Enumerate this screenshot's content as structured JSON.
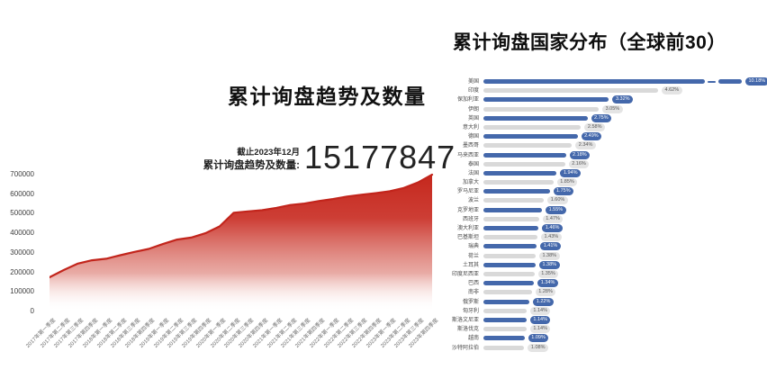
{
  "left_chart": {
    "title": "累计询盘趋势及数量",
    "asof_label": "截止2023年12月",
    "total_label": "累计询盘趋势及数量:",
    "total_value": "15177847"
  },
  "right_chart": {
    "title": "累计询盘国家分布（全球前30）"
  },
  "colors": {
    "area_fill_top": "#c5281d",
    "area_line": "#c2251c",
    "bar_blue": "#4468ab",
    "bar_gray": "#d9d9d9",
    "pill_gray_bg": "#e4e4e4",
    "pill_gray_text": "#555555",
    "pill_blue_text": "#ffffff",
    "text_dark": "#111111",
    "tick_text": "#3c3c3c"
  },
  "chart_data": [
    {
      "type": "area",
      "title": "累计询盘趋势及数量",
      "annotation": {
        "asof": "截止2023年12月",
        "label": "累计询盘趋势及数量:",
        "value": "15177847"
      },
      "x": [
        "2017年第一季度",
        "2017年第二季度",
        "2017年第三季度",
        "2017年第四季度",
        "2018年第一季度",
        "2018年第二季度",
        "2018年第三季度",
        "2018年第四季度",
        "2019年第一季度",
        "2019年第二季度",
        "2019年第三季度",
        "2019年第四季度",
        "2020年第一季度",
        "2020年第二季度",
        "2020年第三季度",
        "2020年第四季度",
        "2021年第一季度",
        "2021年第二季度",
        "2021年第三季度",
        "2021年第四季度",
        "2022年第一季度",
        "2022年第二季度",
        "2022年第三季度",
        "2022年第四季度",
        "2023年第一季度",
        "2023年第二季度",
        "2023年第三季度",
        "2023年第四季度"
      ],
      "values": [
        175000,
        212000,
        245000,
        262000,
        270000,
        288000,
        305000,
        320000,
        345000,
        368000,
        378000,
        400000,
        435000,
        505000,
        512000,
        518000,
        530000,
        545000,
        552000,
        565000,
        575000,
        588000,
        597000,
        605000,
        615000,
        632000,
        660000,
        700000
      ],
      "ylim": [
        0,
        700000
      ],
      "yticks": [
        0,
        100000,
        200000,
        300000,
        400000,
        500000,
        600000,
        700000
      ],
      "grid": false,
      "legend": false
    },
    {
      "type": "bar",
      "orientation": "horizontal",
      "title": "累计询盘国家分布（全球前30）",
      "unit": "%",
      "categories": [
        "美国",
        "印度",
        "保加利亚",
        "伊朗",
        "英国",
        "意大利",
        "德国",
        "墨西哥",
        "马来西亚",
        "泰国",
        "法国",
        "加拿大",
        "罗马尼亚",
        "波兰",
        "克罗地亚",
        "西班牙",
        "澳大利亚",
        "巴基斯坦",
        "瑞典",
        "荷兰",
        "土耳其",
        "印度尼西亚",
        "巴西",
        "南非",
        "俄罗斯",
        "匈牙利",
        "斯洛文尼亚",
        "斯洛伐克",
        "越南",
        "沙特阿拉伯"
      ],
      "values": [
        10.18,
        4.62,
        3.32,
        3.05,
        2.75,
        2.58,
        2.49,
        2.34,
        2.18,
        2.16,
        1.94,
        1.85,
        1.75,
        1.6,
        1.55,
        1.47,
        1.46,
        1.43,
        1.41,
        1.38,
        1.38,
        1.35,
        1.34,
        1.28,
        1.22,
        1.14,
        1.14,
        1.14,
        1.09,
        1.08
      ],
      "axis_break_category": "美国",
      "legend": false
    }
  ]
}
